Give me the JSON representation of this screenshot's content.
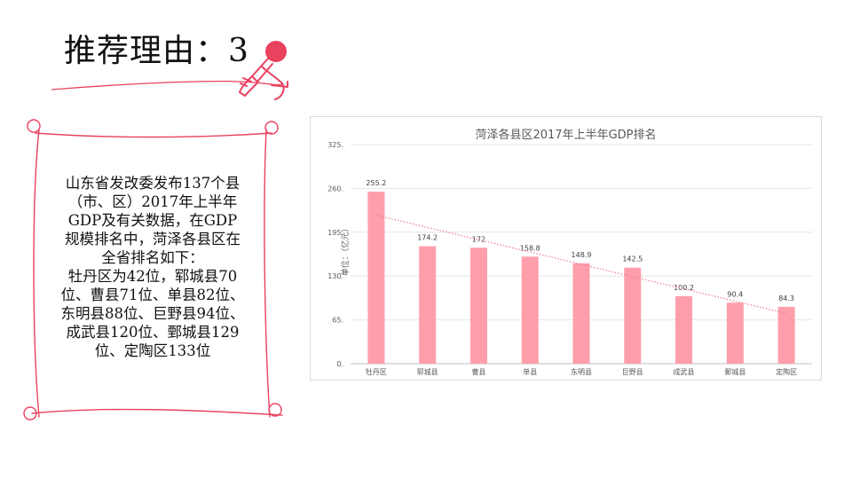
{
  "slide": {
    "title": "推荐理由：3",
    "paragraph_lines": [
      "山东省发改委发布137个县",
      "（市、区）2017年上半年",
      "GDP及有关数据，在GDP",
      "规模排名中，菏泽各县区在",
      "全省排名如下：",
      "牡丹区为42位，郓城县70",
      "位、曹县71位、单县82位、",
      "东明县88位、巨野县94位、",
      "成武县120位、鄄城县129",
      "位、定陶区133位"
    ]
  },
  "icons": {
    "decoration": "microphone-icon"
  },
  "colors": {
    "accent": "#e8425f",
    "bar": "#ff9eab",
    "trend": "#f07a8c"
  },
  "chart_data": {
    "type": "bar",
    "title": "菏泽各县区2017年上半年GDP排名",
    "ylabel": "单位：（亿元）",
    "categories": [
      "牡丹区",
      "郓城县",
      "曹县",
      "单县",
      "东明县",
      "巨野县",
      "成武县",
      "鄄城县",
      "定陶区"
    ],
    "values": [
      255.2,
      174.2,
      172,
      158.8,
      148.9,
      142.5,
      100.2,
      90.4,
      84.3
    ],
    "data_labels": [
      "255.2",
      "174.2",
      "172",
      "158.8",
      "148.9",
      "142.5",
      "100.2",
      "90.4",
      "84.3"
    ],
    "ylim": [
      0,
      325
    ],
    "yticks": [
      "0.",
      "65.",
      "130.",
      "195.",
      "260.",
      "325."
    ],
    "trendline": "linear",
    "grid": true,
    "legend": "none"
  }
}
